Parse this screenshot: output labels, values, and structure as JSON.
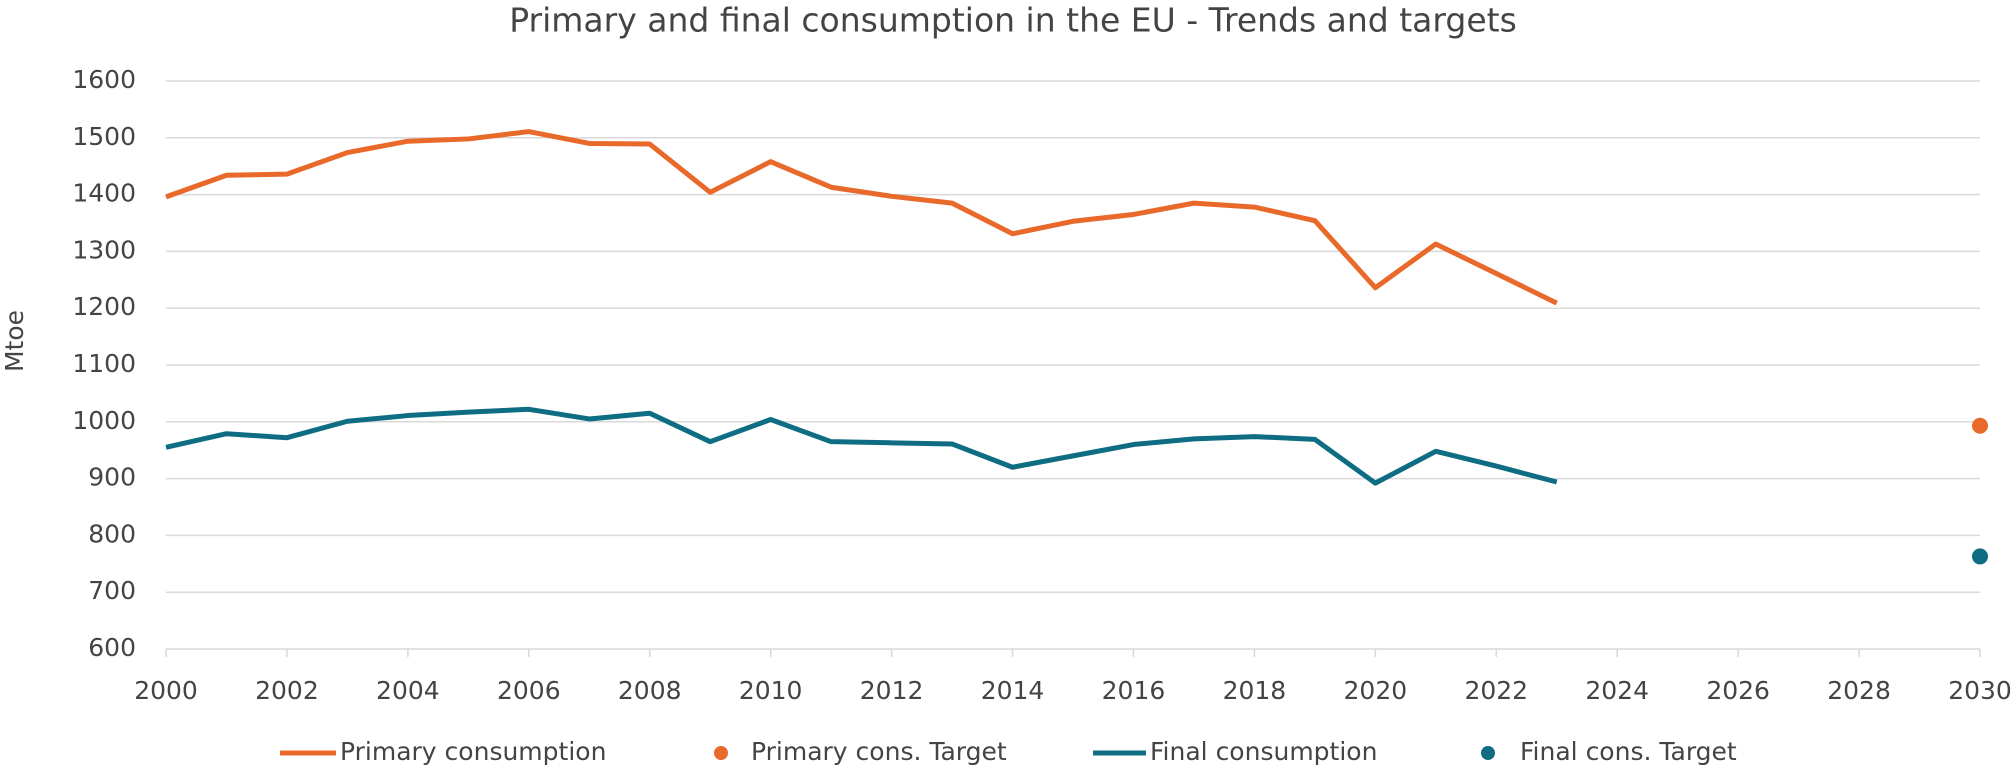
{
  "chart_data": {
    "type": "line",
    "title": "Primary and final consumption in the EU - Trends and targets",
    "ylabel": "Mtoe",
    "xlim": [
      2000,
      2030
    ],
    "xticks": [
      2000,
      2002,
      2004,
      2006,
      2008,
      2010,
      2012,
      2014,
      2016,
      2018,
      2020,
      2022,
      2024,
      2026,
      2028,
      2030
    ],
    "ylim": [
      600,
      1600
    ],
    "yticks": [
      600,
      700,
      800,
      900,
      1000,
      1100,
      1200,
      1300,
      1400,
      1500,
      1600
    ],
    "grid": true,
    "legend": "bottom",
    "series": [
      {
        "name": "Primary consumption",
        "color": "#e8692a",
        "mode": "line",
        "x": [
          2000,
          2001,
          2002,
          2003,
          2004,
          2005,
          2006,
          2007,
          2008,
          2009,
          2010,
          2011,
          2012,
          2013,
          2014,
          2015,
          2016,
          2017,
          2018,
          2019,
          2020,
          2021,
          2022,
          2023
        ],
        "values": [
          1396,
          1434,
          1436,
          1474,
          1494,
          1498,
          1511,
          1490,
          1489,
          1404,
          1458,
          1413,
          1397,
          1385,
          1331,
          1353,
          1365,
          1385,
          1378,
          1354,
          1236,
          1313,
          1261,
          1209
        ]
      },
      {
        "name": "Primary cons. Target",
        "color": "#e8692a",
        "mode": "marker",
        "x": [
          2030
        ],
        "values": [
          993
        ]
      },
      {
        "name": "Final consumption",
        "color": "#0e6d82",
        "mode": "line",
        "x": [
          2000,
          2001,
          2002,
          2003,
          2004,
          2005,
          2006,
          2007,
          2008,
          2009,
          2010,
          2011,
          2012,
          2013,
          2014,
          2015,
          2016,
          2017,
          2018,
          2019,
          2020,
          2021,
          2022,
          2023
        ],
        "values": [
          955,
          979,
          972,
          1001,
          1011,
          1017,
          1022,
          1005,
          1015,
          965,
          1004,
          965,
          963,
          961,
          920,
          940,
          960,
          970,
          974,
          969,
          892,
          948,
          922,
          894
        ]
      },
      {
        "name": "Final cons. Target",
        "color": "#0e6d82",
        "mode": "marker",
        "x": [
          2030
        ],
        "values": [
          763
        ]
      }
    ]
  }
}
